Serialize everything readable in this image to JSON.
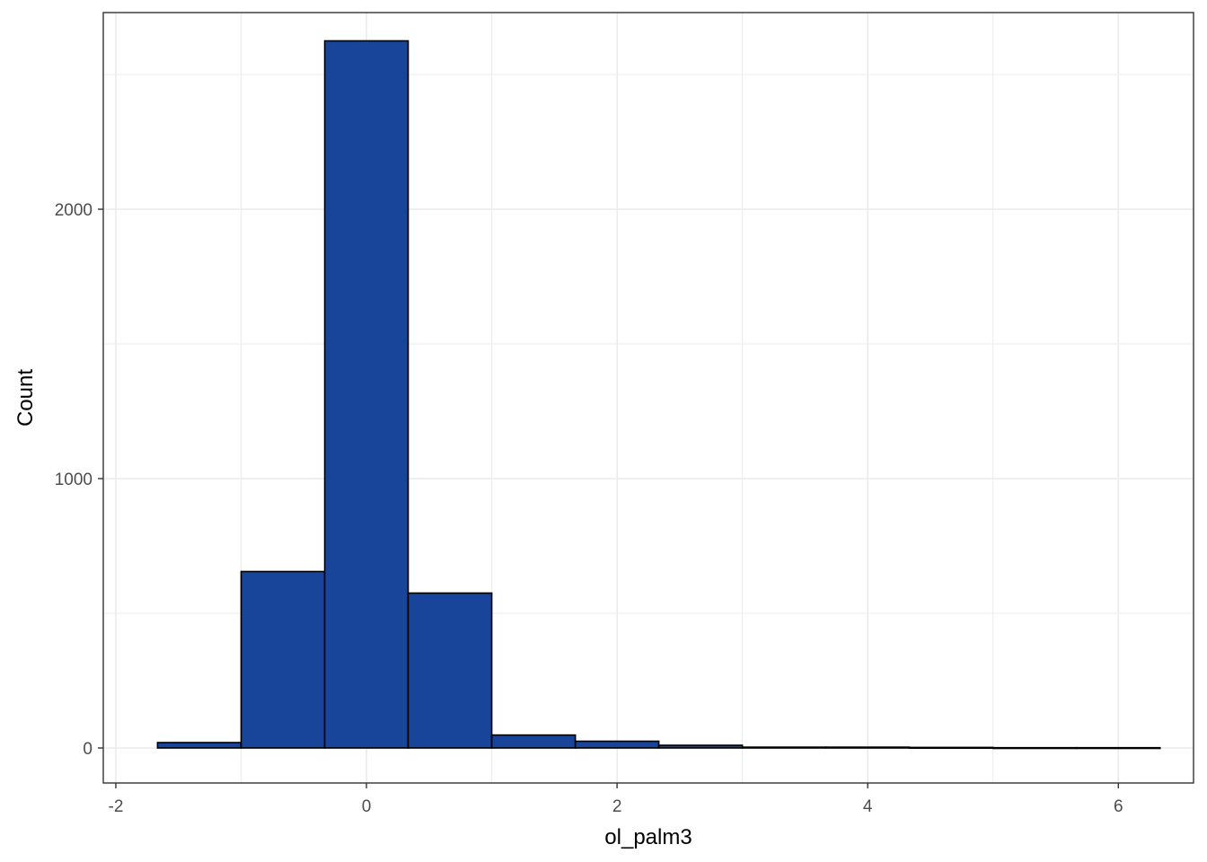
{
  "chart_data": {
    "type": "bar",
    "subtype": "histogram",
    "title": "",
    "xlabel": "ol_palm3",
    "ylabel": "Count",
    "xlim": [
      -2.1,
      6.6
    ],
    "ylim": [
      -130,
      2730
    ],
    "x_ticks": [
      -2,
      0,
      2,
      4,
      6
    ],
    "y_ticks": [
      0,
      1000,
      2000
    ],
    "grid": true,
    "legend": "none",
    "bins": [
      {
        "x0": -1.667,
        "x1": -1.0,
        "count": 20
      },
      {
        "x0": -1.0,
        "x1": -0.333,
        "count": 655
      },
      {
        "x0": -0.333,
        "x1": 0.333,
        "count": 2625
      },
      {
        "x0": 0.333,
        "x1": 1.0,
        "count": 575
      },
      {
        "x0": 1.0,
        "x1": 1.667,
        "count": 48
      },
      {
        "x0": 1.667,
        "x1": 2.333,
        "count": 25
      },
      {
        "x0": 2.333,
        "x1": 3.0,
        "count": 10
      },
      {
        "x0": 3.0,
        "x1": 3.667,
        "count": 3
      },
      {
        "x0": 3.667,
        "x1": 4.333,
        "count": 3
      },
      {
        "x0": 4.333,
        "x1": 5.0,
        "count": 2
      },
      {
        "x0": 5.0,
        "x1": 5.667,
        "count": 1
      },
      {
        "x0": 5.667,
        "x1": 6.333,
        "count": 1
      }
    ],
    "colors": {
      "bar_fill": "#184499",
      "bar_stroke": "#000000",
      "grid": "#ebebeb",
      "panel_border": "#333333",
      "tick_text": "#4d4d4d"
    }
  }
}
